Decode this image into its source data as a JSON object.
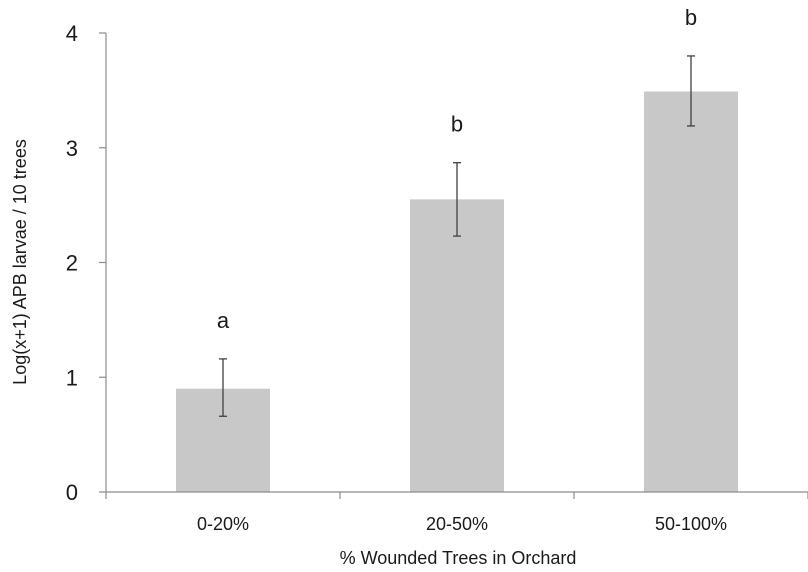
{
  "chart_data": {
    "type": "bar",
    "categories": [
      "0-20%",
      "20-50%",
      "50-100%"
    ],
    "values": [
      0.9,
      2.55,
      3.49
    ],
    "error_low": [
      0.66,
      2.23,
      3.19
    ],
    "error_high": [
      1.16,
      2.87,
      3.8
    ],
    "significance_labels": [
      "a",
      "b",
      "b"
    ],
    "xlabel": "% Wounded Trees in Orchard",
    "ylabel": "Log(x+1) APB larvae / 10 trees",
    "ylim": [
      0,
      4
    ],
    "yticks": [
      "0",
      "1",
      "2",
      "3",
      "4"
    ],
    "grid": false,
    "bar_color": "#c8c8c8",
    "axis_color": "#8c8c8c",
    "error_bar_color": "#404040"
  }
}
